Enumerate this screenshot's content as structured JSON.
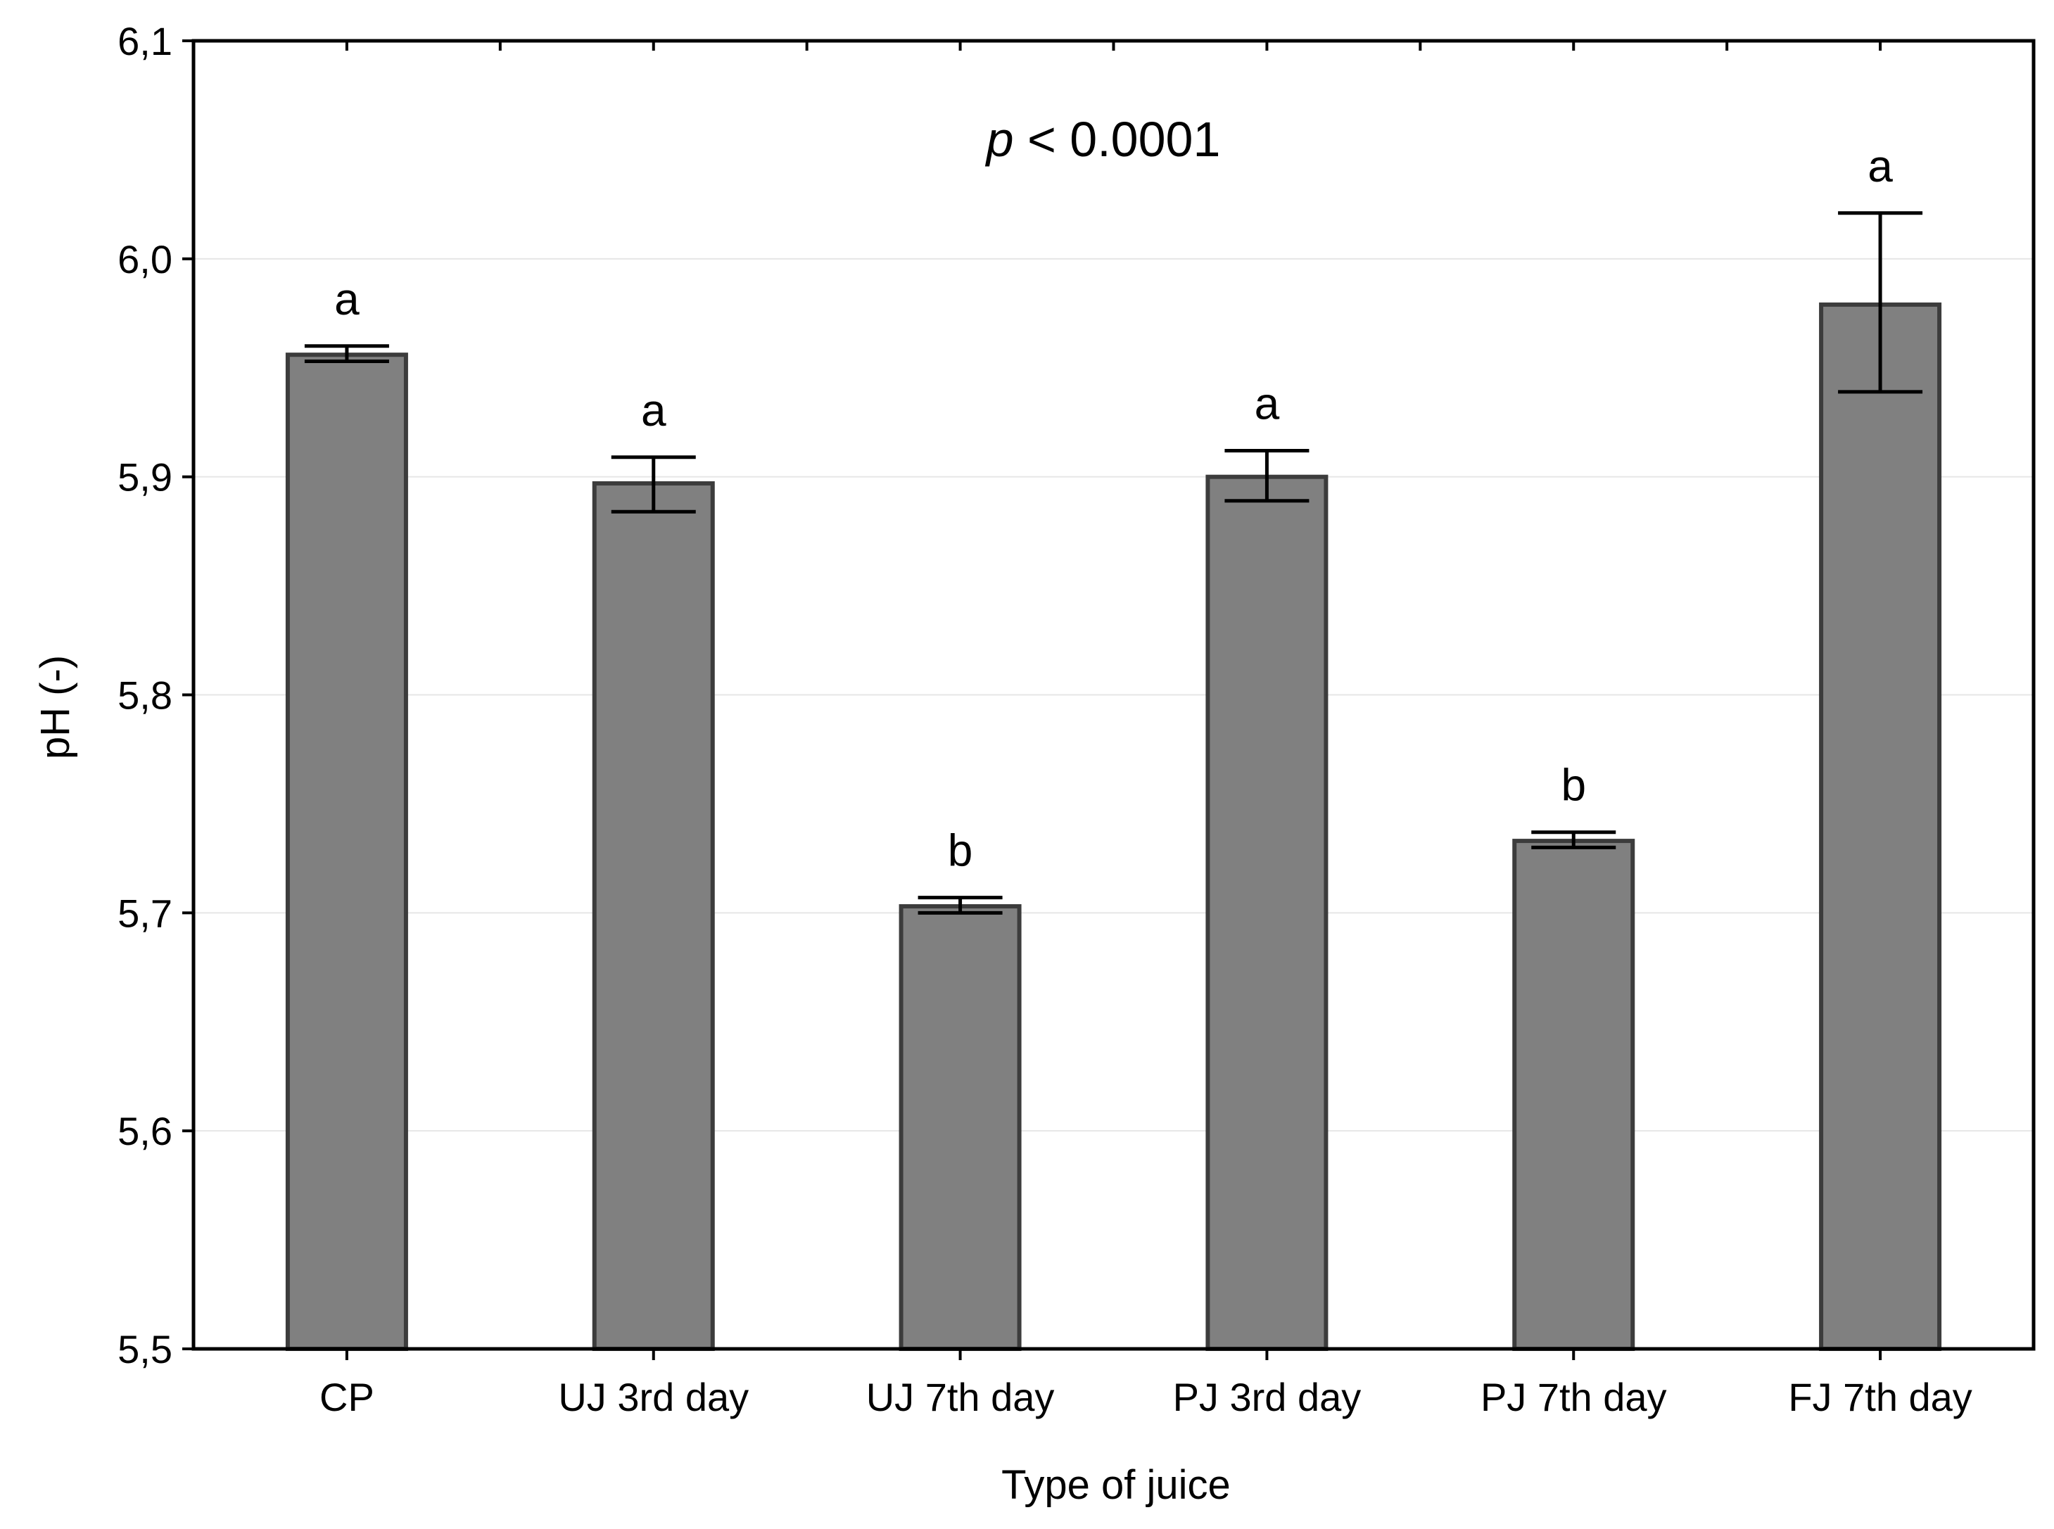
{
  "chart_data": {
    "type": "bar",
    "title": "",
    "xlabel": "Type of juice",
    "ylabel": "pH (-)",
    "ylim": [
      5.5,
      6.1
    ],
    "yticks": [
      "5,5",
      "5,6",
      "5,7",
      "5,8",
      "5,9",
      "6,0",
      "6,1"
    ],
    "ytick_values": [
      5.5,
      5.6,
      5.7,
      5.8,
      5.9,
      6.0,
      6.1
    ],
    "grid": true,
    "categories": [
      "CP",
      "UJ 3rd day",
      "UJ 7th day",
      "PJ 3rd day",
      "PJ 7th day",
      "FJ 7th day"
    ],
    "values": [
      5.956,
      5.897,
      5.703,
      5.9,
      5.733,
      5.979
    ],
    "error_low": [
      5.953,
      5.884,
      5.7,
      5.889,
      5.73,
      5.939
    ],
    "error_high": [
      5.96,
      5.909,
      5.707,
      5.912,
      5.737,
      6.021
    ],
    "significance_letters": [
      "a",
      "a",
      "b",
      "a",
      "b",
      "a"
    ],
    "annotation": {
      "prefix": "p",
      "text": " < 0.0001"
    },
    "bar_color": "#808080",
    "bar_edge_color": "#3c3c3c"
  }
}
